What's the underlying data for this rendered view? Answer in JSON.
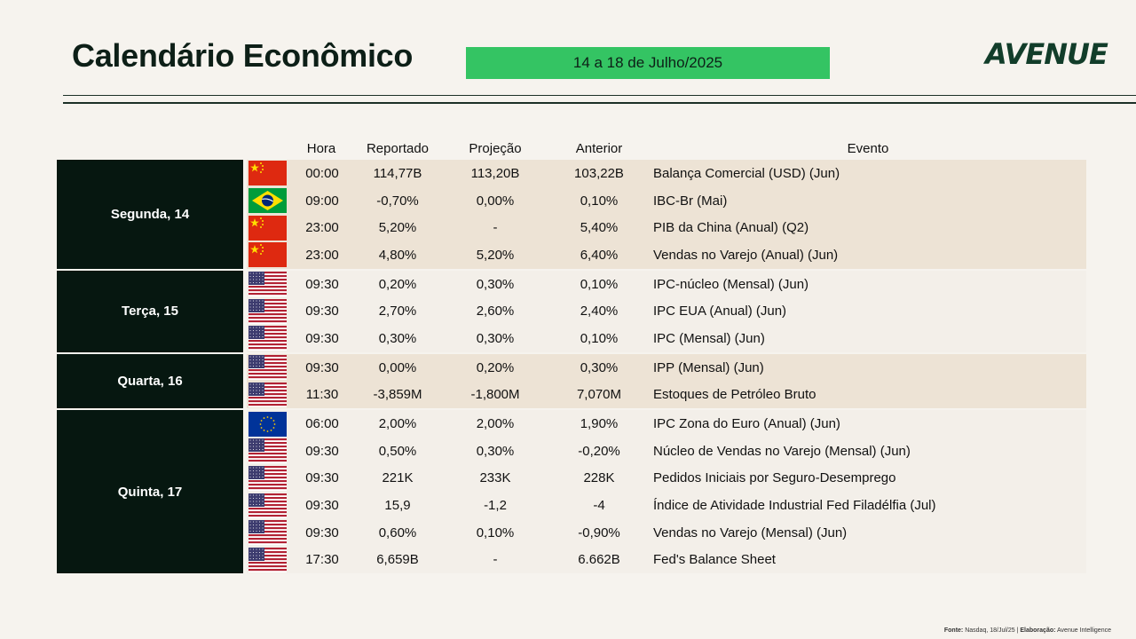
{
  "header": {
    "title": "Calendário Econômico",
    "date_range": "14 a 18 de Julho/2025",
    "logo": "AVENUE"
  },
  "columns": {
    "hora": "Hora",
    "reportado": "Reportado",
    "projecao": "Projeção",
    "anterior": "Anterior",
    "evento": "Evento"
  },
  "colors": {
    "accent_green": "#34c463",
    "dark": "#061710",
    "row_tan": "#ede3d5",
    "row_light": "#f3efe9"
  },
  "groups": [
    {
      "day": "Segunda, 14",
      "shade": "tan",
      "rows": [
        {
          "flag": "china-flag-icon",
          "hora": "00:00",
          "reportado": "114,77B",
          "projecao": "113,20B",
          "anterior": "103,22B",
          "evento": "Balança Comercial (USD) (Jun)"
        },
        {
          "flag": "brazil-flag-icon",
          "hora": "09:00",
          "reportado": "-0,70%",
          "projecao": "0,00%",
          "anterior": "0,10%",
          "evento": "IBC-Br (Mai)"
        },
        {
          "flag": "china-flag-icon",
          "hora": "23:00",
          "reportado": "5,20%",
          "projecao": "-",
          "anterior": "5,40%",
          "evento": "PIB da China (Anual) (Q2)"
        },
        {
          "flag": "china-flag-icon",
          "hora": "23:00",
          "reportado": "4,80%",
          "projecao": "5,20%",
          "anterior": "6,40%",
          "evento": "Vendas no Varejo (Anual) (Jun)"
        }
      ]
    },
    {
      "day": "Terça, 15",
      "shade": "light",
      "rows": [
        {
          "flag": "usa-flag-icon",
          "hora": "09:30",
          "reportado": "0,20%",
          "projecao": "0,30%",
          "anterior": "0,10%",
          "evento": "IPC-núcleo (Mensal) (Jun)"
        },
        {
          "flag": "usa-flag-icon",
          "hora": "09:30",
          "reportado": "2,70%",
          "projecao": "2,60%",
          "anterior": "2,40%",
          "evento": "IPC EUA (Anual) (Jun)"
        },
        {
          "flag": "usa-flag-icon",
          "hora": "09:30",
          "reportado": "0,30%",
          "projecao": "0,30%",
          "anterior": "0,10%",
          "evento": "IPC (Mensal) (Jun)"
        }
      ]
    },
    {
      "day": "Quarta, 16",
      "shade": "tan",
      "rows": [
        {
          "flag": "usa-flag-icon",
          "hora": "09:30",
          "reportado": "0,00%",
          "projecao": "0,20%",
          "anterior": "0,30%",
          "evento": "IPP (Mensal) (Jun)"
        },
        {
          "flag": "usa-flag-icon",
          "hora": "11:30",
          "reportado": "-3,859M",
          "projecao": "-1,800M",
          "anterior": "7,070M",
          "evento": "Estoques de Petróleo Bruto"
        }
      ]
    },
    {
      "day": "Quinta, 17",
      "shade": "light",
      "rows": [
        {
          "flag": "eu-flag-icon",
          "hora": "06:00",
          "reportado": "2,00%",
          "projecao": "2,00%",
          "anterior": "1,90%",
          "evento": "IPC Zona do Euro (Anual) (Jun)"
        },
        {
          "flag": "usa-flag-icon",
          "hora": "09:30",
          "reportado": "0,50%",
          "projecao": "0,30%",
          "anterior": "-0,20%",
          "evento": "Núcleo de Vendas no Varejo (Mensal) (Jun)"
        },
        {
          "flag": "usa-flag-icon",
          "hora": "09:30",
          "reportado": "221K",
          "projecao": "233K",
          "anterior": "228K",
          "evento": "Pedidos Iniciais por Seguro-Desemprego"
        },
        {
          "flag": "usa-flag-icon",
          "hora": "09:30",
          "reportado": "15,9",
          "projecao": "-1,2",
          "anterior": "-4",
          "evento": "Índice de Atividade Industrial Fed Filadélfia (Jul)"
        },
        {
          "flag": "usa-flag-icon",
          "hora": "09:30",
          "reportado": "0,60%",
          "projecao": "0,10%",
          "anterior": "-0,90%",
          "evento": "Vendas no Varejo (Mensal) (Jun)"
        },
        {
          "flag": "usa-flag-icon",
          "hora": "17:30",
          "reportado": "6,659B",
          "projecao": "-",
          "anterior": "6.662B",
          "evento": "Fed's Balance Sheet"
        }
      ]
    }
  ],
  "footer": {
    "fonte_label": "Fonte:",
    "fonte_value": "Nasdaq, 18/Jul/25 |",
    "elaboracao_label": "Elaboração:",
    "elaboracao_value": "Avenue Intelligence"
  }
}
